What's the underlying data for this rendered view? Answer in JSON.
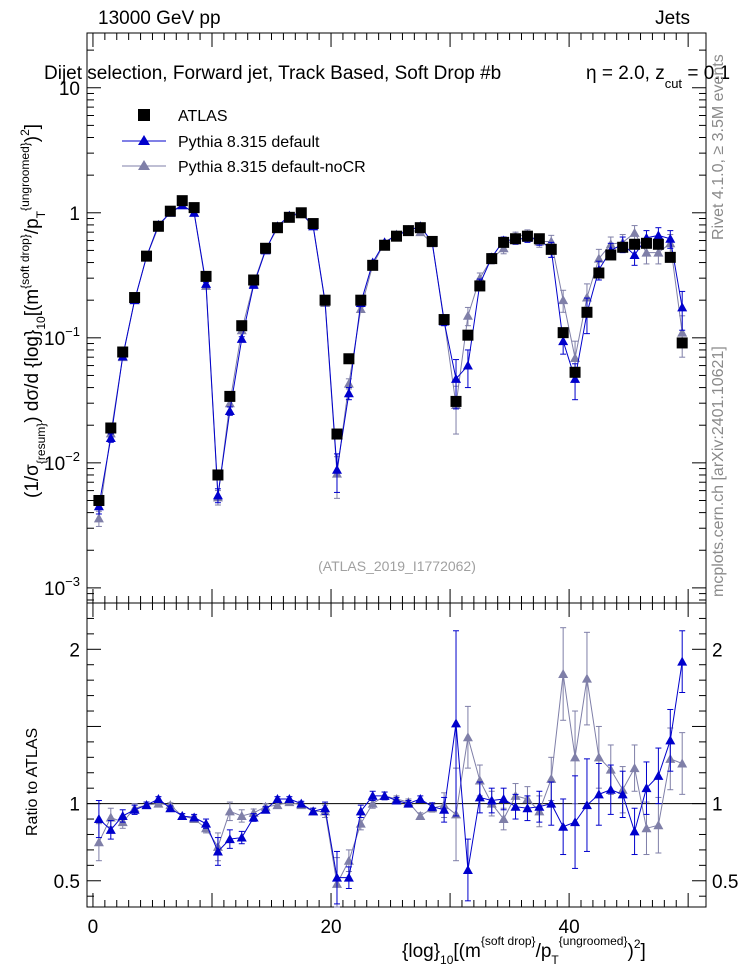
{
  "header": {
    "left": "13000 GeV pp",
    "right": "Jets"
  },
  "selection": {
    "main": "Dijet selection, Forward jet, Track Based, Soft Drop #b",
    "eta_part": "η = 2.0, z",
    "z_sub": "cut",
    "z_rest": " = 0.1"
  },
  "side_labels": {
    "rivet": "Rivet 4.1.0, ≥ 3.5M events",
    "mcplots": "mcplots.cern.ch [arXiv:2401.10621]"
  },
  "watermark": "(ATLAS_2019_I1772062)",
  "legend": [
    {
      "key": "atlas",
      "label": "ATLAS"
    },
    {
      "key": "default",
      "label": "Pythia 8.315 default"
    },
    {
      "key": "nocr",
      "label": "Pythia 8.315 default-noCR"
    }
  ],
  "colors": {
    "atlas": "#000000",
    "default": "#0000cc",
    "nocr": "#7f7fa8",
    "axis": "#000000"
  },
  "axis_text": {
    "x_pre": "{log}",
    "x_sub1": "10",
    "x_mid": "[(m",
    "x_sup1": "{soft drop}",
    "x_slash": "/p",
    "x_sub2": "T",
    "x_sup2": "{ungroomed}",
    "x_post": ")",
    "x_sup3": "2",
    "x_close": "]",
    "y_main": "(1/σ{resum}) dσ/d {log}10[(m{soft drop}/pT{ungroomed})²]",
    "ratio_y": "Ratio to ATLAS"
  },
  "chart_data": {
    "type": "scatter",
    "title": "Dijet selection, Forward jet, Track Based, Soft Drop #b, η = 2.0, z_cut = 0.1",
    "xlabel": "{log}10[(m{soft drop}/pT{ungroomed})^2]",
    "ylabel": "(1/σ{resum}) dσ/d {log}10[(m{soft drop}/pT{ungroomed})^2]",
    "xlim": [
      -0.5,
      51.5
    ],
    "ylim": [
      0.0008,
      25
    ],
    "yscale": "log",
    "x_ticks": [
      0,
      20,
      40
    ],
    "y_ticks": [
      0.001,
      0.01,
      0.1,
      1,
      10
    ],
    "y_tick_labels": [
      "10^-3",
      "10^-2",
      "10^-1",
      "1",
      "10"
    ],
    "ratio_ylim": [
      0.33,
      2.3
    ],
    "ratio_ticks": [
      0.5,
      1,
      2
    ],
    "x": [
      0.5,
      1.5,
      2.5,
      3.5,
      4.5,
      5.5,
      6.5,
      7.5,
      8.5,
      9.5,
      10.5,
      11.5,
      12.5,
      13.5,
      14.5,
      15.5,
      16.5,
      17.5,
      18.5,
      19.5,
      20.5,
      21.5,
      22.5,
      23.5,
      24.5,
      25.5,
      26.5,
      27.5,
      28.5,
      29.5,
      30.5,
      31.5,
      32.5,
      33.5,
      34.5,
      35.5,
      36.5,
      37.5,
      38.5,
      39.5,
      40.5,
      41.5,
      42.5,
      43.5,
      44.5,
      45.5,
      46.5,
      47.5,
      48.5,
      49.5
    ],
    "series": [
      {
        "name": "ATLAS",
        "marker": "square",
        "values": [
          0.005,
          0.019,
          0.077,
          0.21,
          0.45,
          0.78,
          1.03,
          1.25,
          1.1,
          0.31,
          0.008,
          0.034,
          0.125,
          0.29,
          0.52,
          0.76,
          0.92,
          1.0,
          0.82,
          0.2,
          0.017,
          0.068,
          0.2,
          0.38,
          0.55,
          0.65,
          0.72,
          0.76,
          0.59,
          0.14,
          0.031,
          0.105,
          0.26,
          0.43,
          0.58,
          0.62,
          0.65,
          0.62,
          0.51,
          0.11,
          0.053,
          0.16,
          0.33,
          0.46,
          0.53,
          0.56,
          0.57,
          0.56,
          0.44,
          0.091
        ]
      },
      {
        "name": "Pythia 8.315 default",
        "marker": "triangle",
        "values": [
          0.0045,
          0.0158,
          0.071,
          0.2,
          0.445,
          0.8,
          1.0,
          1.15,
          1.0,
          0.27,
          0.0055,
          0.026,
          0.098,
          0.265,
          0.5,
          0.78,
          0.95,
          1.0,
          0.78,
          0.195,
          0.0088,
          0.036,
          0.19,
          0.4,
          0.58,
          0.66,
          0.72,
          0.78,
          0.58,
          0.135,
          0.047,
          0.06,
          0.27,
          0.44,
          0.6,
          0.61,
          0.63,
          0.61,
          0.51,
          0.094,
          0.047,
          0.158,
          0.35,
          0.5,
          0.56,
          0.46,
          0.63,
          0.66,
          0.62,
          0.175
        ],
        "errors": [
          0.0006,
          0.0012,
          0.003,
          0.005,
          0.008,
          0.01,
          0.012,
          0.012,
          0.012,
          0.008,
          0.0007,
          0.002,
          0.004,
          0.006,
          0.008,
          0.01,
          0.012,
          0.012,
          0.012,
          0.007,
          0.003,
          0.004,
          0.006,
          0.008,
          0.01,
          0.012,
          0.012,
          0.013,
          0.012,
          0.01,
          0.02,
          0.02,
          0.025,
          0.03,
          0.04,
          0.05,
          0.05,
          0.06,
          0.07,
          0.02,
          0.015,
          0.05,
          0.06,
          0.07,
          0.08,
          0.08,
          0.09,
          0.1,
          0.1,
          0.06
        ],
        "ratio": [
          0.9,
          0.83,
          0.92,
          0.96,
          0.99,
          1.03,
          0.97,
          0.92,
          0.91,
          0.87,
          0.69,
          0.77,
          0.78,
          0.91,
          0.96,
          1.03,
          1.03,
          1.0,
          0.95,
          0.97,
          0.52,
          0.52,
          0.95,
          1.05,
          1.05,
          1.02,
          1.0,
          1.03,
          0.98,
          0.96,
          1.52,
          0.57,
          1.04,
          1.02,
          1.03,
          0.98,
          0.97,
          0.98,
          1.0,
          0.85,
          0.88,
          0.99,
          1.06,
          1.09,
          1.06,
          0.82,
          1.1,
          1.18,
          1.41,
          1.92
        ],
        "ratio_err": [
          0.12,
          0.06,
          0.04,
          0.03,
          0.02,
          0.015,
          0.015,
          0.015,
          0.02,
          0.03,
          0.09,
          0.06,
          0.04,
          0.025,
          0.02,
          0.015,
          0.015,
          0.015,
          0.02,
          0.04,
          0.17,
          0.07,
          0.04,
          0.03,
          0.025,
          0.02,
          0.02,
          0.02,
          0.025,
          0.08,
          0.6,
          0.2,
          0.1,
          0.08,
          0.07,
          0.08,
          0.08,
          0.1,
          0.14,
          0.18,
          0.3,
          0.3,
          0.2,
          0.16,
          0.15,
          0.15,
          0.17,
          0.18,
          0.2,
          0.2
        ]
      },
      {
        "name": "Pythia 8.315 default-noCR",
        "marker": "triangle",
        "values": [
          0.0036,
          0.0172,
          0.07,
          0.2,
          0.445,
          0.77,
          1.02,
          1.15,
          1.0,
          0.26,
          0.0053,
          0.03,
          0.115,
          0.272,
          0.51,
          0.75,
          0.93,
          0.99,
          0.78,
          0.19,
          0.0082,
          0.043,
          0.17,
          0.38,
          0.58,
          0.67,
          0.73,
          0.7,
          0.57,
          0.14,
          0.029,
          0.15,
          0.3,
          0.43,
          0.52,
          0.65,
          0.67,
          0.59,
          0.59,
          0.2,
          0.069,
          0.21,
          0.43,
          0.56,
          0.58,
          0.69,
          0.48,
          0.48,
          0.57,
          0.11
        ],
        "errors": [
          0.0005,
          0.0011,
          0.003,
          0.005,
          0.008,
          0.01,
          0.012,
          0.012,
          0.012,
          0.008,
          0.0007,
          0.002,
          0.004,
          0.006,
          0.008,
          0.01,
          0.012,
          0.012,
          0.012,
          0.007,
          0.003,
          0.004,
          0.006,
          0.008,
          0.01,
          0.012,
          0.012,
          0.013,
          0.012,
          0.01,
          0.012,
          0.025,
          0.03,
          0.04,
          0.05,
          0.05,
          0.06,
          0.06,
          0.07,
          0.04,
          0.025,
          0.06,
          0.08,
          0.08,
          0.09,
          0.1,
          0.09,
          0.09,
          0.1,
          0.04
        ],
        "ratio": [
          0.75,
          0.91,
          0.88,
          0.97,
          0.99,
          1.0,
          0.99,
          0.92,
          0.9,
          0.84,
          0.72,
          0.95,
          0.92,
          0.94,
          0.98,
          0.99,
          1.01,
          0.99,
          0.95,
          0.95,
          0.48,
          0.63,
          0.87,
          1.0,
          1.05,
          1.03,
          1.01,
          0.92,
          0.97,
          0.99,
          0.93,
          1.43,
          1.15,
          1.0,
          0.9,
          1.05,
          1.03,
          0.95,
          1.16,
          1.84,
          1.3,
          1.81,
          1.3,
          1.22,
          1.09,
          1.23,
          0.84,
          0.86,
          1.29,
          1.26
        ],
        "ratio_err": [
          0.12,
          0.06,
          0.04,
          0.03,
          0.02,
          0.015,
          0.015,
          0.015,
          0.02,
          0.03,
          0.09,
          0.06,
          0.04,
          0.025,
          0.02,
          0.015,
          0.015,
          0.015,
          0.02,
          0.04,
          0.17,
          0.07,
          0.04,
          0.03,
          0.025,
          0.02,
          0.02,
          0.02,
          0.025,
          0.08,
          0.3,
          0.2,
          0.1,
          0.08,
          0.07,
          0.08,
          0.08,
          0.1,
          0.14,
          0.3,
          0.3,
          0.3,
          0.2,
          0.16,
          0.15,
          0.15,
          0.17,
          0.18,
          0.2,
          0.2
        ]
      }
    ]
  }
}
